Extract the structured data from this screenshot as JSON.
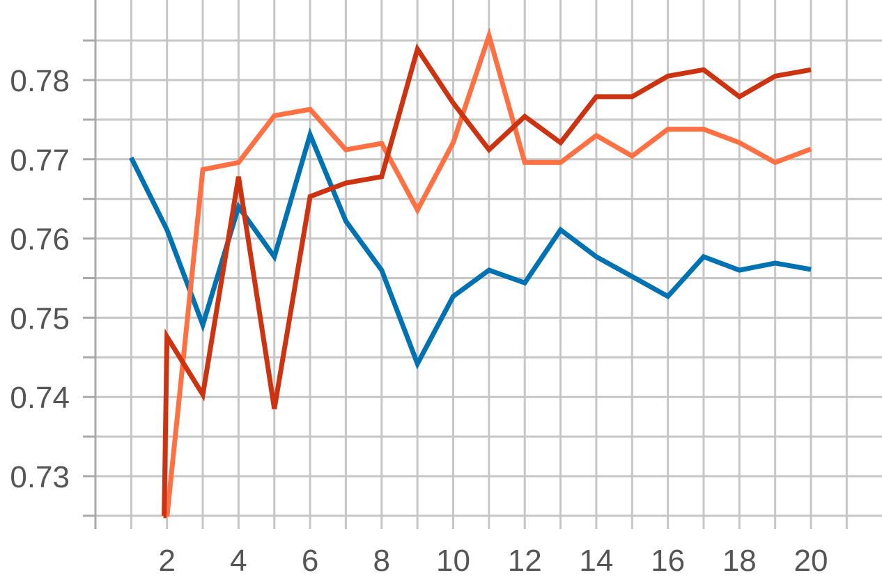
{
  "chart_data": {
    "type": "line",
    "title": "",
    "xlabel": "",
    "ylabel": "",
    "xlim": [
      0,
      21
    ],
    "ylim": [
      0.725,
      0.7805
    ],
    "x_ticks": [
      2,
      4,
      6,
      8,
      10,
      12,
      14,
      16,
      18,
      20
    ],
    "x_minor_ticks": [
      0,
      1,
      3,
      5,
      7,
      9,
      11,
      13,
      15,
      17,
      19,
      21
    ],
    "y_ticks": [
      0.73,
      0.74,
      0.75,
      0.76,
      0.77,
      0.78
    ],
    "y_minor_ticks": [
      0.725,
      0.735,
      0.745,
      0.755,
      0.765,
      0.775,
      0.785
    ],
    "grid": true,
    "legend": "none",
    "series": [
      {
        "color": "#0072b2",
        "x": [
          1,
          2,
          3,
          4,
          5,
          6,
          7,
          8,
          9,
          10,
          11,
          12,
          13,
          14,
          15,
          16,
          17,
          18,
          19,
          20
        ],
        "values": [
          0.7702,
          0.7611,
          0.7491,
          0.764,
          0.7577,
          0.7731,
          0.7622,
          0.756,
          0.7442,
          0.7527,
          0.756,
          0.7544,
          0.7611,
          0.7577,
          0.7552,
          0.7527,
          0.7577,
          0.756,
          0.7569,
          0.7561
        ]
      },
      {
        "color": "#ff7043",
        "x": [
          2,
          3,
          4,
          5,
          6,
          7,
          8,
          9,
          10,
          11,
          12,
          13,
          14,
          15,
          16,
          17,
          18,
          19,
          20
        ],
        "values": [
          0.7249,
          0.7687,
          0.7696,
          0.7755,
          0.7763,
          0.7712,
          0.772,
          0.7636,
          0.7721,
          0.7856,
          0.7696,
          0.7696,
          0.773,
          0.7704,
          0.7738,
          0.7738,
          0.7721,
          0.7696,
          0.7713
        ]
      },
      {
        "color": "#cc3311",
        "x": [
          1.9,
          1.92,
          2,
          3,
          4,
          5,
          6,
          7,
          8,
          9,
          10,
          11,
          12,
          13,
          14,
          15,
          16,
          17,
          18,
          19,
          20
        ],
        "values": [
          0.725,
          0.725,
          0.7476,
          0.7403,
          0.7678,
          0.7385,
          0.7653,
          0.767,
          0.7678,
          0.7839,
          0.7771,
          0.7712,
          0.7754,
          0.7721,
          0.7779,
          0.7779,
          0.7805,
          0.7813,
          0.7779,
          0.7805,
          0.7813
        ]
      }
    ]
  }
}
